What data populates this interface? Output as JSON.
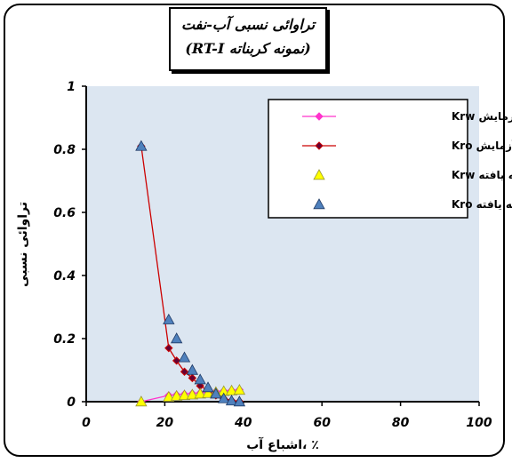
{
  "chart_data": {
    "type": "scatter",
    "title_line1": "تراوائی نسبی آب-نفت",
    "title_line2": "(نمونه کربناته RT-I)",
    "xlabel": "اشباع آب، ٪",
    "ylabel": "تراوائی نسبی",
    "xlim": [
      0,
      100
    ],
    "ylim": [
      0,
      1
    ],
    "x_ticks": [
      "0",
      "20",
      "40",
      "60",
      "80",
      "100"
    ],
    "y_ticks": [
      "0",
      "0.2",
      "0.4",
      "0.6",
      "0.8",
      "1"
    ],
    "legend_position": "top-right",
    "grid": false,
    "plot_background": "#dce6f1",
    "series": [
      {
        "name": "آزمایش Krw",
        "marker": "diamond",
        "color": "#ff33cc",
        "line": true,
        "x": [
          14,
          21,
          23,
          25,
          27,
          29,
          31,
          33,
          35,
          37,
          39
        ],
        "y": [
          0.0,
          0.02,
          0.022,
          0.024,
          0.026,
          0.028,
          0.03,
          0.032,
          0.034,
          0.036,
          0.038
        ]
      },
      {
        "name": "آزمایش Kro",
        "marker": "diamond",
        "color": "#cc0000",
        "fill": "#660033",
        "line": true,
        "x": [
          14,
          21,
          23,
          25,
          27,
          29,
          31,
          33,
          35,
          37,
          39
        ],
        "y": [
          0.81,
          0.17,
          0.13,
          0.095,
          0.075,
          0.05,
          0.035,
          0.02,
          0.01,
          0.004,
          0.001
        ]
      },
      {
        "name": "مدل توسعه یافته Krw",
        "marker": "triangle",
        "color": "#ffff00",
        "line": false,
        "x": [
          14,
          21,
          23,
          25,
          27,
          29,
          31,
          33,
          35,
          37,
          39
        ],
        "y": [
          0.0,
          0.015,
          0.018,
          0.02,
          0.022,
          0.025,
          0.027,
          0.03,
          0.033,
          0.035,
          0.037
        ]
      },
      {
        "name": "مدل توسعه یافته Kro",
        "marker": "triangle",
        "color": "#4f81bd",
        "line": false,
        "x": [
          14,
          21,
          23,
          25,
          27,
          29,
          31,
          33,
          35,
          37,
          39
        ],
        "y": [
          0.81,
          0.26,
          0.2,
          0.14,
          0.1,
          0.07,
          0.045,
          0.025,
          0.01,
          0.003,
          0.0
        ]
      }
    ]
  }
}
